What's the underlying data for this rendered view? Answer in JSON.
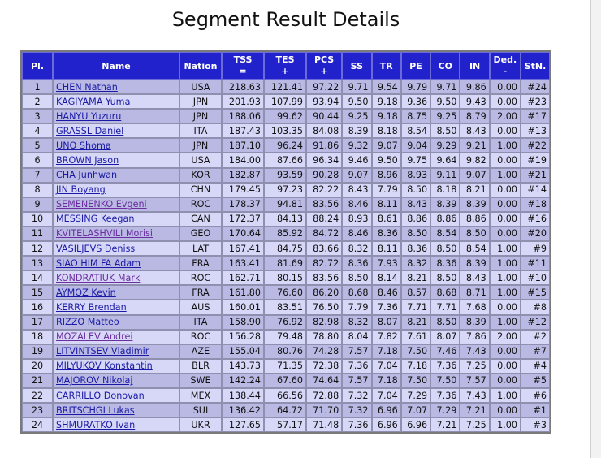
{
  "title": "Segment Result Details",
  "headers": {
    "pl": "Pl.",
    "name": "Name",
    "nation": "Nation",
    "tss_top": "TSS",
    "tss_bottom": "=",
    "tes_top": "TES",
    "tes_bottom": "+",
    "pcs_top": "PCS",
    "pcs_bottom": "+",
    "ss": "SS",
    "tr": "TR",
    "pe": "PE",
    "co": "CO",
    "in": "IN",
    "ded_top": "Ded.",
    "ded_bottom": "-",
    "stn": "StN."
  },
  "rows": [
    {
      "pl": "1",
      "name": "CHEN Nathan",
      "nation": "USA",
      "tss": "218.63",
      "tes": "121.41",
      "pcs": "97.22",
      "ss": "9.71",
      "tr": "9.54",
      "pe": "9.79",
      "co": "9.71",
      "in": "9.86",
      "ded": "0.00",
      "stn": "#24",
      "visited": false
    },
    {
      "pl": "2",
      "name": "KAGIYAMA Yuma",
      "nation": "JPN",
      "tss": "201.93",
      "tes": "107.99",
      "pcs": "93.94",
      "ss": "9.50",
      "tr": "9.18",
      "pe": "9.36",
      "co": "9.50",
      "in": "9.43",
      "ded": "0.00",
      "stn": "#23",
      "visited": false
    },
    {
      "pl": "3",
      "name": "HANYU Yuzuru",
      "nation": "JPN",
      "tss": "188.06",
      "tes": "99.62",
      "pcs": "90.44",
      "ss": "9.25",
      "tr": "9.18",
      "pe": "8.75",
      "co": "9.25",
      "in": "8.79",
      "ded": "2.00",
      "stn": "#17",
      "visited": false
    },
    {
      "pl": "4",
      "name": "GRASSL Daniel",
      "nation": "ITA",
      "tss": "187.43",
      "tes": "103.35",
      "pcs": "84.08",
      "ss": "8.39",
      "tr": "8.18",
      "pe": "8.54",
      "co": "8.50",
      "in": "8.43",
      "ded": "0.00",
      "stn": "#13",
      "visited": false
    },
    {
      "pl": "5",
      "name": "UNO Shoma",
      "nation": "JPN",
      "tss": "187.10",
      "tes": "96.24",
      "pcs": "91.86",
      "ss": "9.32",
      "tr": "9.07",
      "pe": "9.04",
      "co": "9.29",
      "in": "9.21",
      "ded": "1.00",
      "stn": "#22",
      "visited": false
    },
    {
      "pl": "6",
      "name": "BROWN Jason",
      "nation": "USA",
      "tss": "184.00",
      "tes": "87.66",
      "pcs": "96.34",
      "ss": "9.46",
      "tr": "9.50",
      "pe": "9.75",
      "co": "9.64",
      "in": "9.82",
      "ded": "0.00",
      "stn": "#19",
      "visited": false
    },
    {
      "pl": "7",
      "name": "CHA Junhwan",
      "nation": "KOR",
      "tss": "182.87",
      "tes": "93.59",
      "pcs": "90.28",
      "ss": "9.07",
      "tr": "8.96",
      "pe": "8.93",
      "co": "9.11",
      "in": "9.07",
      "ded": "1.00",
      "stn": "#21",
      "visited": false
    },
    {
      "pl": "8",
      "name": "JIN Boyang",
      "nation": "CHN",
      "tss": "179.45",
      "tes": "97.23",
      "pcs": "82.22",
      "ss": "8.43",
      "tr": "7.79",
      "pe": "8.50",
      "co": "8.18",
      "in": "8.21",
      "ded": "0.00",
      "stn": "#14",
      "visited": false
    },
    {
      "pl": "9",
      "name": "SEMENENKO Evgeni",
      "nation": "ROC",
      "tss": "178.37",
      "tes": "94.81",
      "pcs": "83.56",
      "ss": "8.46",
      "tr": "8.11",
      "pe": "8.43",
      "co": "8.39",
      "in": "8.39",
      "ded": "0.00",
      "stn": "#18",
      "visited": true
    },
    {
      "pl": "10",
      "name": "MESSING Keegan",
      "nation": "CAN",
      "tss": "172.37",
      "tes": "84.13",
      "pcs": "88.24",
      "ss": "8.93",
      "tr": "8.61",
      "pe": "8.86",
      "co": "8.86",
      "in": "8.86",
      "ded": "0.00",
      "stn": "#16",
      "visited": false
    },
    {
      "pl": "11",
      "name": "KVITELASHVILI Morisi",
      "nation": "GEO",
      "tss": "170.64",
      "tes": "85.92",
      "pcs": "84.72",
      "ss": "8.46",
      "tr": "8.36",
      "pe": "8.50",
      "co": "8.54",
      "in": "8.50",
      "ded": "0.00",
      "stn": "#20",
      "visited": true
    },
    {
      "pl": "12",
      "name": "VASILJEVS Deniss",
      "nation": "LAT",
      "tss": "167.41",
      "tes": "84.75",
      "pcs": "83.66",
      "ss": "8.32",
      "tr": "8.11",
      "pe": "8.36",
      "co": "8.50",
      "in": "8.54",
      "ded": "1.00",
      "stn": "#9",
      "visited": false
    },
    {
      "pl": "13",
      "name": "SIAO HIM FA Adam",
      "nation": "FRA",
      "tss": "163.41",
      "tes": "81.69",
      "pcs": "82.72",
      "ss": "8.36",
      "tr": "7.93",
      "pe": "8.32",
      "co": "8.36",
      "in": "8.39",
      "ded": "1.00",
      "stn": "#11",
      "visited": false
    },
    {
      "pl": "14",
      "name": "KONDRATIUK Mark",
      "nation": "ROC",
      "tss": "162.71",
      "tes": "80.15",
      "pcs": "83.56",
      "ss": "8.50",
      "tr": "8.14",
      "pe": "8.21",
      "co": "8.50",
      "in": "8.43",
      "ded": "1.00",
      "stn": "#10",
      "visited": true
    },
    {
      "pl": "15",
      "name": "AYMOZ Kevin",
      "nation": "FRA",
      "tss": "161.80",
      "tes": "76.60",
      "pcs": "86.20",
      "ss": "8.68",
      "tr": "8.46",
      "pe": "8.57",
      "co": "8.68",
      "in": "8.71",
      "ded": "1.00",
      "stn": "#15",
      "visited": false
    },
    {
      "pl": "16",
      "name": "KERRY Brendan",
      "nation": "AUS",
      "tss": "160.01",
      "tes": "83.51",
      "pcs": "76.50",
      "ss": "7.79",
      "tr": "7.36",
      "pe": "7.71",
      "co": "7.71",
      "in": "7.68",
      "ded": "0.00",
      "stn": "#8",
      "visited": false
    },
    {
      "pl": "17",
      "name": "RIZZO Matteo",
      "nation": "ITA",
      "tss": "158.90",
      "tes": "76.92",
      "pcs": "82.98",
      "ss": "8.32",
      "tr": "8.07",
      "pe": "8.21",
      "co": "8.50",
      "in": "8.39",
      "ded": "1.00",
      "stn": "#12",
      "visited": false
    },
    {
      "pl": "18",
      "name": "MOZALEV Andrei",
      "nation": "ROC",
      "tss": "156.28",
      "tes": "79.48",
      "pcs": "78.80",
      "ss": "8.04",
      "tr": "7.82",
      "pe": "7.61",
      "co": "8.07",
      "in": "7.86",
      "ded": "2.00",
      "stn": "#2",
      "visited": true
    },
    {
      "pl": "19",
      "name": "LITVINTSEV Vladimir",
      "nation": "AZE",
      "tss": "155.04",
      "tes": "80.76",
      "pcs": "74.28",
      "ss": "7.57",
      "tr": "7.18",
      "pe": "7.50",
      "co": "7.46",
      "in": "7.43",
      "ded": "0.00",
      "stn": "#7",
      "visited": false
    },
    {
      "pl": "20",
      "name": "MILYUKOV Konstantin",
      "nation": "BLR",
      "tss": "143.73",
      "tes": "71.35",
      "pcs": "72.38",
      "ss": "7.36",
      "tr": "7.04",
      "pe": "7.18",
      "co": "7.36",
      "in": "7.25",
      "ded": "0.00",
      "stn": "#4",
      "visited": false
    },
    {
      "pl": "21",
      "name": "MAJOROV Nikolaj",
      "nation": "SWE",
      "tss": "142.24",
      "tes": "67.60",
      "pcs": "74.64",
      "ss": "7.57",
      "tr": "7.18",
      "pe": "7.50",
      "co": "7.50",
      "in": "7.57",
      "ded": "0.00",
      "stn": "#5",
      "visited": false
    },
    {
      "pl": "22",
      "name": "CARRILLO Donovan",
      "nation": "MEX",
      "tss": "138.44",
      "tes": "66.56",
      "pcs": "72.88",
      "ss": "7.32",
      "tr": "7.04",
      "pe": "7.29",
      "co": "7.36",
      "in": "7.43",
      "ded": "1.00",
      "stn": "#6",
      "visited": false
    },
    {
      "pl": "23",
      "name": "BRITSCHGI Lukas",
      "nation": "SUI",
      "tss": "136.42",
      "tes": "64.72",
      "pcs": "71.70",
      "ss": "7.32",
      "tr": "6.96",
      "pe": "7.07",
      "co": "7.29",
      "in": "7.21",
      "ded": "0.00",
      "stn": "#1",
      "visited": false
    },
    {
      "pl": "24",
      "name": "SHMURATKO Ivan",
      "nation": "UKR",
      "tss": "127.65",
      "tes": "57.17",
      "pcs": "71.48",
      "ss": "7.36",
      "tr": "6.96",
      "pe": "6.96",
      "co": "7.21",
      "in": "7.25",
      "ded": "1.00",
      "stn": "#3",
      "visited": false
    }
  ],
  "colors": {
    "header_bg": "#2222cc",
    "row_dark": "#b9b9e3",
    "row_light": "#d7d7f7",
    "link": "#1a1aa6",
    "link_visited": "#6b2fa0"
  }
}
